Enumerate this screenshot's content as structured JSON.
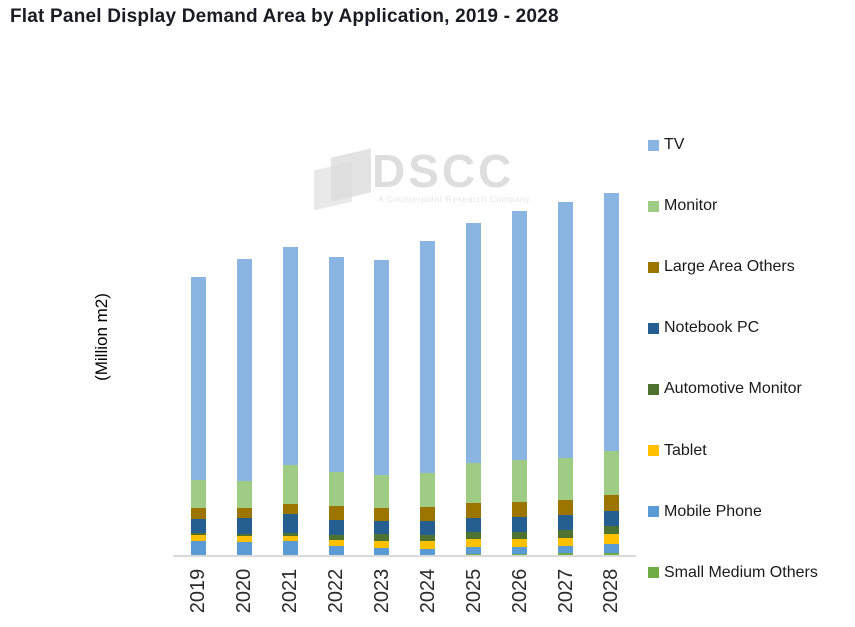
{
  "header": {
    "title": "Flat Panel Display Demand Area by Application, 2019 - 2028"
  },
  "watermark": {
    "text": "DSCC",
    "tagline": "A Counterpoint Research Company"
  },
  "chart_data": {
    "type": "bar",
    "variant": "stacked-vertical",
    "title": "Flat Panel Display Demand Area by Application, 2019 - 2028",
    "xlabel": "",
    "ylabel": "(Million m2)",
    "unit": "Million m2",
    "grid": false,
    "y_axis_ticks_visible": false,
    "categories": [
      "2019",
      "2020",
      "2021",
      "2022",
      "2023",
      "2024",
      "2025",
      "2026",
      "2027",
      "2028"
    ],
    "series_bottom_to_top": [
      {
        "name": "Small Medium Others",
        "color": "#6FAC46",
        "values": [
          0.7,
          0.7,
          0.7,
          0.7,
          0.7,
          1.1,
          1.5,
          1.7,
          2.2,
          2.3
        ]
      },
      {
        "name": "Mobile Phone",
        "color": "#5B9BD5",
        "values": [
          10.5,
          9.5,
          10.3,
          6.5,
          5.0,
          4.5,
          5.3,
          5.0,
          5.0,
          6.5
        ]
      },
      {
        "name": "Tablet",
        "color": "#FFC000",
        "values": [
          4.5,
          4.5,
          4.3,
          4.7,
          5.8,
          5.5,
          5.8,
          5.8,
          6.2,
          7.5
        ]
      },
      {
        "name": "Automotive Monitor",
        "color": "#4E7230",
        "values": [
          1.9,
          2.0,
          2.0,
          4.0,
          4.7,
          5.0,
          5.5,
          5.5,
          5.8,
          6.0
        ]
      },
      {
        "name": "Notebook PC",
        "color": "#255E91",
        "values": [
          10.1,
          12.0,
          14.3,
          11.0,
          10.0,
          10.0,
          10.7,
          11.3,
          11.3,
          11.3
        ]
      },
      {
        "name": "Large Area Others",
        "color": "#9C7500",
        "values": [
          8.3,
          7.0,
          7.5,
          10.3,
          10.0,
          10.7,
          11.0,
          11.3,
          11.5,
          12.5
        ]
      },
      {
        "name": "Monitor",
        "color": "#9FCC84",
        "values": [
          21.0,
          20.5,
          29.3,
          26.0,
          24.5,
          25.7,
          30.2,
          31.3,
          31.5,
          32.5
        ]
      },
      {
        "name": "TV",
        "color": "#8AB4E2",
        "values": [
          152.0,
          166.5,
          163.5,
          161.0,
          161.3,
          173.7,
          179.8,
          187.0,
          192.2,
          194.0
        ]
      }
    ],
    "totals_estimated": [
      209.0,
      222.7,
      231.9,
      224.2,
      222.0,
      236.2,
      249.8,
      258.9,
      265.7,
      272.6
    ],
    "legend": {
      "position": "right",
      "order": [
        "TV",
        "Monitor",
        "Large Area Others",
        "Notebook PC",
        "Automotive Monitor",
        "Tablet",
        "Mobile Phone",
        "Small Medium Others"
      ]
    }
  }
}
